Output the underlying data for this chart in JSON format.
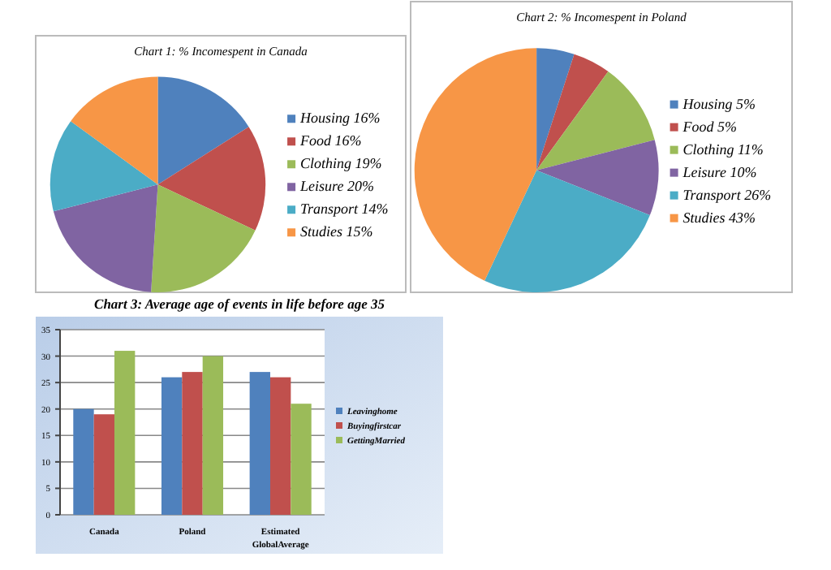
{
  "chart_data": [
    {
      "type": "pie",
      "title": "Chart 1: % Incomespent in Canada",
      "categories": [
        "Housing 16%",
        "Food 16%",
        "Clothing 19%",
        "Leisure 20%",
        "Transport 14%",
        "Studies 15%"
      ],
      "values": [
        16,
        16,
        19,
        20,
        14,
        15
      ],
      "colors": [
        "#4f81bd",
        "#c0504d",
        "#9bbb59",
        "#8064a2",
        "#4bacc6",
        "#f79646"
      ],
      "legend": "right"
    },
    {
      "type": "pie",
      "title": "Chart 2: % Incomespent in Poland",
      "categories": [
        "Housing 5%",
        "Food 5%",
        "Clothing 11%",
        "Leisure 10%",
        "Transport 26%",
        "Studies 43%"
      ],
      "values": [
        5,
        5,
        11,
        10,
        26,
        43
      ],
      "colors": [
        "#4f81bd",
        "#c0504d",
        "#9bbb59",
        "#8064a2",
        "#4bacc6",
        "#f79646"
      ],
      "legend": "right"
    },
    {
      "type": "bar",
      "title": "Chart 3: Average age of events in life before age 35",
      "categories": [
        "Canada",
        "Poland",
        "Estimated GlobalAverage"
      ],
      "series": [
        {
          "name": "Leavinghome",
          "color": "#4f81bd",
          "values": [
            20,
            26,
            27
          ]
        },
        {
          "name": "Buyingfirstcar",
          "color": "#c0504d",
          "values": [
            19,
            27,
            26
          ]
        },
        {
          "name": "GettingMarried",
          "color": "#9bbb59",
          "values": [
            31,
            30,
            21
          ]
        }
      ],
      "ylim": [
        0,
        35
      ],
      "yticks": [
        0,
        5,
        10,
        15,
        20,
        25,
        30,
        35
      ],
      "grid": "y",
      "legend": "right"
    }
  ]
}
